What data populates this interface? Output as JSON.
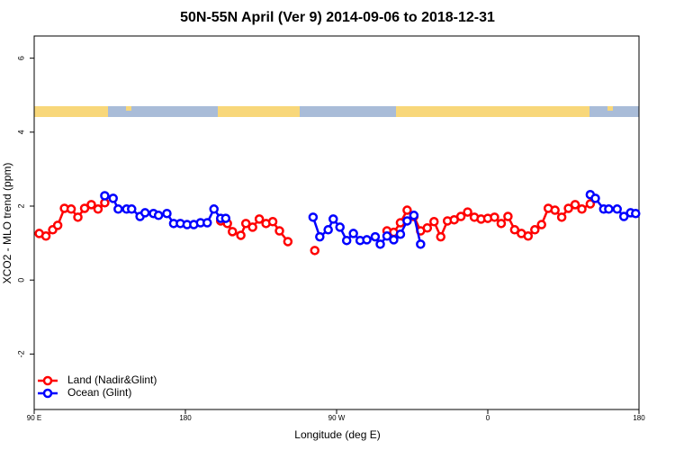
{
  "chart_data": {
    "type": "line",
    "title": "50N-55N April (Ver 9)   2014-09-06 to 2018-12-31",
    "x_label": "Longitude (deg E)",
    "y_label": "XCO2 - MLO trend (ppm)",
    "xlim": [
      90,
      450
    ],
    "ylim": [
      -3.5,
      6.6
    ],
    "xticks": [
      {
        "value": 90,
        "label": "90 E"
      },
      180,
      {
        "value": 270,
        "label": "90 W"
      },
      {
        "value": 360,
        "label": "0"
      },
      {
        "value": 450,
        "label": "180"
      }
    ],
    "yticks": [
      -2,
      0,
      2,
      4,
      6
    ],
    "legend": "bottom-left",
    "series": [
      {
        "name": "Land (Nadir&Glint)",
        "color": "#ff0000",
        "x": [
          93,
          97,
          101,
          104,
          108,
          112,
          116,
          120,
          124,
          128,
          132,
          null,
          201,
          205,
          208,
          213,
          216,
          220,
          224,
          228,
          232,
          236,
          241,
          null,
          257,
          null,
          300,
          304,
          308,
          312,
          316,
          320,
          324,
          328,
          332,
          336,
          340,
          344,
          348,
          352,
          356,
          360,
          364,
          368,
          372,
          376,
          380,
          384,
          388,
          392,
          396,
          400,
          404,
          408,
          412,
          416,
          421
        ],
        "values": [
          1.26,
          1.19,
          1.36,
          1.48,
          1.94,
          1.92,
          1.7,
          1.94,
          2.04,
          1.92,
          2.09,
          null,
          1.6,
          1.53,
          1.31,
          1.21,
          1.53,
          1.43,
          1.65,
          1.53,
          1.58,
          1.33,
          1.04,
          null,
          0.8,
          null,
          1.33,
          1.29,
          1.55,
          1.89,
          1.72,
          1.33,
          1.41,
          1.58,
          1.17,
          1.6,
          1.63,
          1.72,
          1.84,
          1.7,
          1.65,
          1.67,
          1.7,
          1.53,
          1.72,
          1.36,
          1.26,
          1.19,
          1.36,
          1.5,
          1.94,
          1.89,
          1.7,
          1.94,
          2.04,
          1.92,
          2.06
        ]
      },
      {
        "name": "Ocean (Glint)",
        "color": "#0000ff",
        "x": [
          132,
          137,
          140,
          145,
          148,
          153,
          156,
          161,
          164,
          169,
          173,
          177,
          181,
          185,
          189,
          193,
          197,
          201,
          204,
          null,
          256,
          260,
          265,
          268,
          272,
          276,
          280,
          284,
          288,
          293,
          296,
          300,
          304,
          308,
          312,
          316,
          320,
          null,
          421,
          424,
          429,
          432,
          437,
          441,
          445,
          448
        ],
        "values": [
          2.28,
          2.21,
          1.92,
          1.92,
          1.92,
          1.72,
          1.82,
          1.8,
          1.75,
          1.8,
          1.53,
          1.53,
          1.5,
          1.5,
          1.55,
          1.55,
          1.92,
          1.67,
          1.67,
          null,
          1.7,
          1.17,
          1.36,
          1.65,
          1.43,
          1.07,
          1.26,
          1.07,
          1.09,
          1.17,
          0.97,
          1.19,
          1.09,
          1.24,
          1.6,
          1.75,
          0.97,
          null,
          2.31,
          2.21,
          1.92,
          1.92,
          1.92,
          1.72,
          1.82,
          1.8
        ]
      }
    ]
  }
}
